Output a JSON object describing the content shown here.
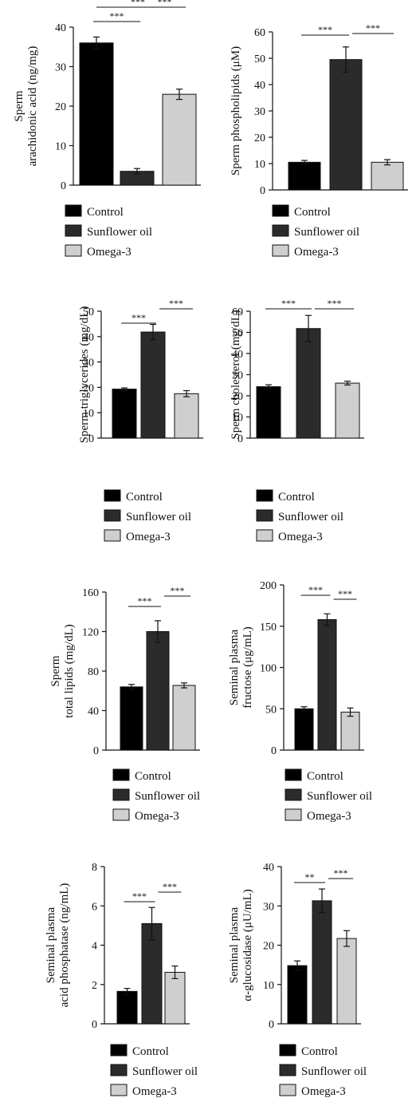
{
  "legend": {
    "items": [
      {
        "label": "Control",
        "color": "#000000"
      },
      {
        "label": "Sunflower oil",
        "color": "#2b2b2b"
      },
      {
        "label": "Omega-3",
        "color": "#cfcfcf"
      }
    ]
  },
  "chart_data": [
    {
      "type": "bar",
      "ylabel": [
        "Sperm",
        "arachidonic acid (ng/mg)"
      ],
      "categories": [
        "Control",
        "Sunflower oil",
        "Omega-3"
      ],
      "values": [
        36,
        3.5,
        23
      ],
      "errors": [
        1.5,
        0.7,
        1.3
      ],
      "ylim": [
        0,
        40
      ],
      "yticks": [
        0,
        10,
        20,
        30,
        40
      ],
      "significance": [
        {
          "from": 0,
          "to": 1,
          "label": "***"
        },
        {
          "from": 1,
          "to": 2,
          "label": "***"
        },
        {
          "from": 0,
          "to": 2,
          "label": "***"
        }
      ]
    },
    {
      "type": "bar",
      "ylabel": [
        "Sperm phospholipids (μM)"
      ],
      "categories": [
        "Control",
        "Sunflower oil",
        "Omega-3"
      ],
      "values": [
        10.5,
        49.5,
        10.5
      ],
      "errors": [
        0.7,
        4.8,
        1.0
      ],
      "ylim": [
        0,
        60
      ],
      "yticks": [
        0,
        10,
        20,
        30,
        40,
        50,
        60
      ],
      "significance": [
        {
          "from": 0,
          "to": 1,
          "label": "***"
        },
        {
          "from": 1,
          "to": 2,
          "label": "***"
        }
      ]
    },
    {
      "type": "bar",
      "ylabel": [
        "Sperm triglycerides (mg/dL)"
      ],
      "categories": [
        "Control",
        "Sunflower oil",
        "Omega-3"
      ],
      "values": [
        19.3,
        41.8,
        17.5
      ],
      "errors": [
        0.5,
        3.0,
        1.2
      ],
      "ylim": [
        0,
        50
      ],
      "yticks": [
        0,
        10,
        20,
        30,
        40,
        50
      ],
      "significance": [
        {
          "from": 0,
          "to": 1,
          "label": "***"
        },
        {
          "from": 1,
          "to": 2,
          "label": "***"
        }
      ]
    },
    {
      "type": "bar",
      "ylabel": [
        "Sperm cholesterol (mg/dL)"
      ],
      "categories": [
        "Control",
        "Sunflower oil",
        "Omega-3"
      ],
      "values": [
        24.3,
        51.8,
        26.0
      ],
      "errors": [
        0.9,
        6.2,
        0.9
      ],
      "ylim": [
        0,
        60
      ],
      "yticks": [
        0,
        10,
        20,
        30,
        40,
        50,
        60
      ],
      "significance": [
        {
          "from": 0,
          "to": 1,
          "label": "***"
        },
        {
          "from": 1,
          "to": 2,
          "label": "***"
        }
      ]
    },
    {
      "type": "bar",
      "ylabel": [
        "Sperm",
        "total lipids (mg/dL)"
      ],
      "categories": [
        "Control",
        "Sunflower oil",
        "Omega-3"
      ],
      "values": [
        64,
        120,
        65.5
      ],
      "errors": [
        2.5,
        11,
        2.5
      ],
      "ylim": [
        0,
        160
      ],
      "yticks": [
        0,
        40,
        80,
        120,
        160
      ],
      "significance": [
        {
          "from": 0,
          "to": 1,
          "label": "***"
        },
        {
          "from": 1,
          "to": 2,
          "label": "***"
        }
      ]
    },
    {
      "type": "bar",
      "ylabel": [
        "Seminal plasma",
        "fructose (μg/mL)"
      ],
      "categories": [
        "Control",
        "Sunflower oil",
        "Omega-3"
      ],
      "values": [
        50,
        158,
        46
      ],
      "errors": [
        2.5,
        7,
        5
      ],
      "ylim": [
        0,
        200
      ],
      "yticks": [
        0,
        50,
        100,
        150,
        200
      ],
      "significance": [
        {
          "from": 0,
          "to": 1,
          "label": "***"
        },
        {
          "from": 1,
          "to": 2,
          "label": "***"
        }
      ]
    },
    {
      "type": "bar",
      "ylabel": [
        "Seminal plasma",
        "acid phosphatase (ng/mL)"
      ],
      "categories": [
        "Control",
        "Sunflower oil",
        "Omega-3"
      ],
      "values": [
        1.65,
        5.1,
        2.62
      ],
      "errors": [
        0.15,
        0.82,
        0.32
      ],
      "ylim": [
        0,
        8
      ],
      "yticks": [
        0,
        2,
        4,
        6,
        8
      ],
      "significance": [
        {
          "from": 0,
          "to": 1,
          "label": "***"
        },
        {
          "from": 1,
          "to": 2,
          "label": "***"
        }
      ]
    },
    {
      "type": "bar",
      "ylabel": [
        "Seminal plasma",
        "α-glucosidase (μU/mL)"
      ],
      "categories": [
        "Control",
        "Sunflower oil",
        "Omega-3"
      ],
      "values": [
        14.8,
        31.3,
        21.7
      ],
      "errors": [
        1.2,
        3.0,
        2.0
      ],
      "ylim": [
        0,
        40
      ],
      "yticks": [
        0,
        10,
        20,
        30,
        40
      ],
      "significance": [
        {
          "from": 0,
          "to": 1,
          "label": "**"
        },
        {
          "from": 1,
          "to": 2,
          "label": "***"
        }
      ]
    }
  ]
}
